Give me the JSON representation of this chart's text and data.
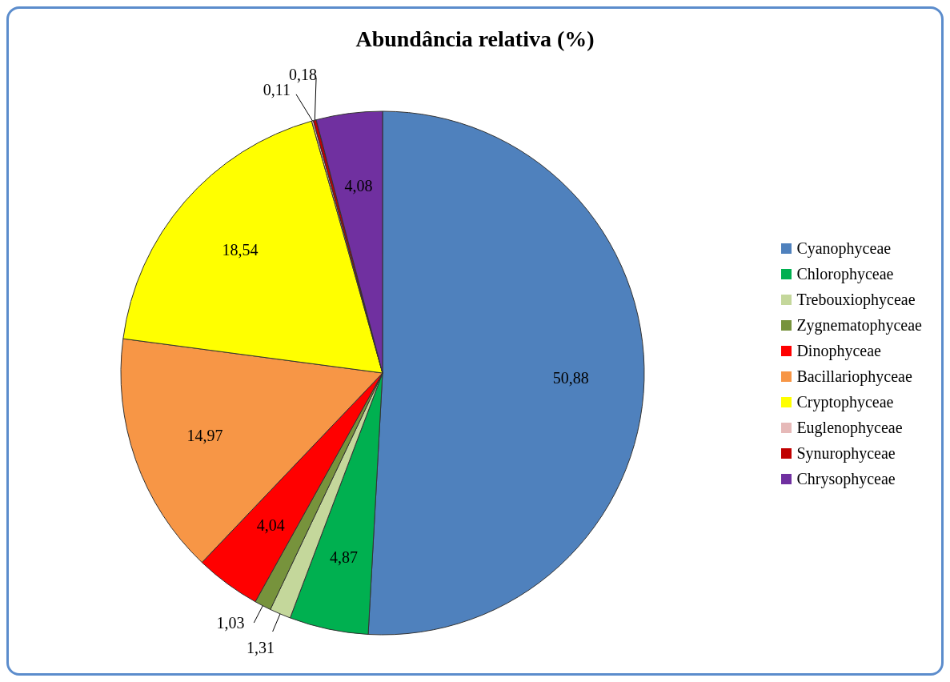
{
  "chart_data": {
    "type": "pie",
    "title": "Abundância relativa (%)",
    "categories": [
      "Cyanophyceae",
      "Chlorophyceae",
      "Trebouxiophyceae",
      "Zygnematophyceae",
      "Dinophyceae",
      "Bacillariophyceae",
      "Cryptophyceae",
      "Euglenophyceae",
      "Synurophyceae",
      "Chrysophyceae"
    ],
    "values": [
      50.88,
      4.87,
      1.31,
      1.03,
      4.04,
      14.97,
      18.54,
      0.11,
      0.18,
      4.08
    ],
    "value_labels": [
      "50,88",
      "4,87",
      "1,31",
      "1,03",
      "4,04",
      "14,97",
      "18,54",
      "0,11",
      "0,18",
      "4,08"
    ],
    "colors": [
      "#4f81bd",
      "#00b050",
      "#c4d79b",
      "#77933c",
      "#ff0000",
      "#f79646",
      "#ffff00",
      "#e6b9b8",
      "#c00000",
      "#7030a0"
    ],
    "legend": "right"
  }
}
